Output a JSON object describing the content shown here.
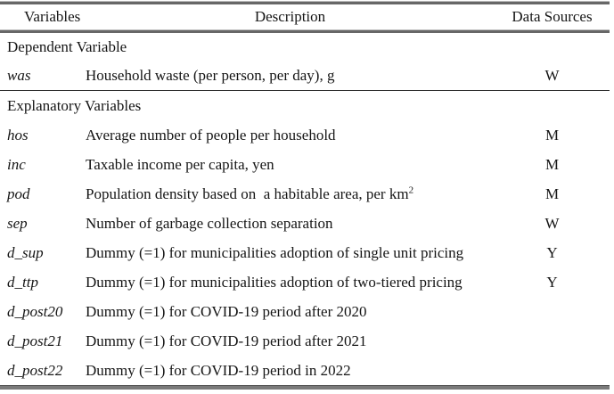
{
  "colors": {
    "text": "#151515",
    "thick_rule_gray": "#676767",
    "thick_rule_highlight": "#bdbdbd",
    "bottom_rule_gray": "#7a7a7a",
    "bottom_rule_dark_edge": "#4f4f4f",
    "thin_rule": "#2a2a2a",
    "background": "#ffffff"
  },
  "header": {
    "variables": "Variables",
    "description": "Description",
    "data_sources": "Data Sources"
  },
  "sections": [
    {
      "title": "Dependent Variable",
      "rows": [
        {
          "variable": "was",
          "description": "Household waste (per person, per day), g",
          "source": "W"
        }
      ]
    },
    {
      "title": "Explanatory Variables",
      "rows": [
        {
          "variable": "hos",
          "description": "Average number of people per household",
          "source": "M"
        },
        {
          "variable": "inc",
          "description": "Taxable income per capita, yen",
          "source": "M"
        },
        {
          "variable": "pod",
          "description": "Population density based on  a habitable area, per km",
          "description_sup": "2",
          "source": "M"
        },
        {
          "variable": "sep",
          "description": "Number of garbage collection separation",
          "source": "W"
        },
        {
          "variable": "d_sup",
          "description": "Dummy (=1) for municipalities adoption of single unit pricing",
          "source": "Y"
        },
        {
          "variable": "d_ttp",
          "description": "Dummy (=1) for municipalities adoption of two-tiered pricing",
          "source": "Y"
        },
        {
          "variable": "d_post20",
          "description": "Dummy (=1) for COVID-19 period after 2020",
          "source": ""
        },
        {
          "variable": "d_post21",
          "description": "Dummy (=1) for COVID-19 period after 2021",
          "source": ""
        },
        {
          "variable": "d_post22",
          "description": "Dummy (=1) for COVID-19 period in 2022",
          "source": ""
        }
      ]
    }
  ]
}
